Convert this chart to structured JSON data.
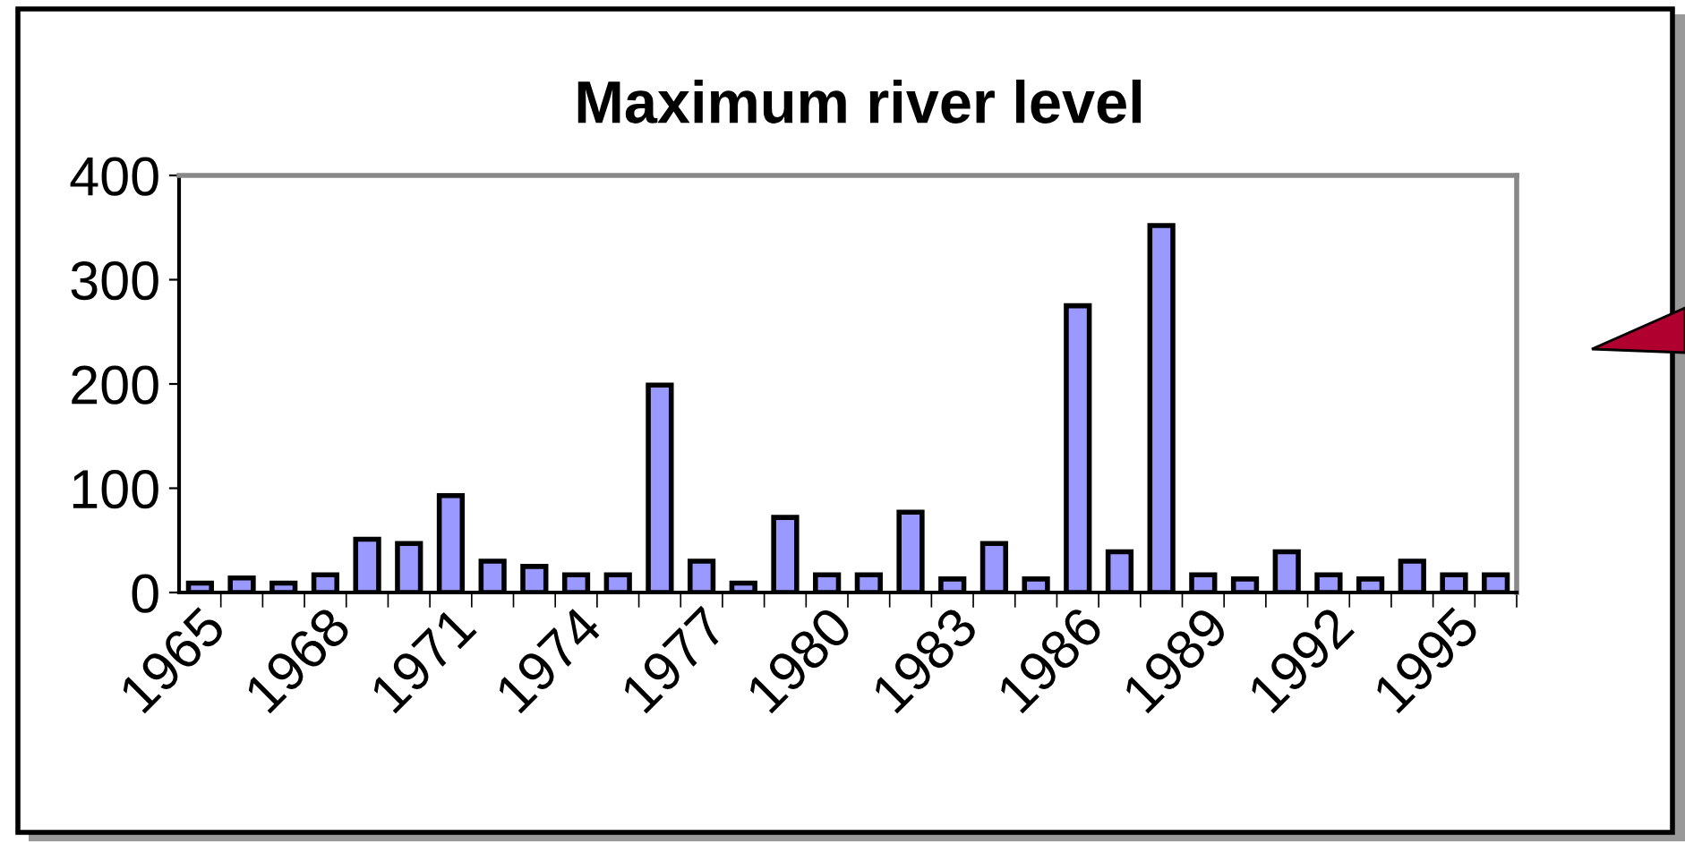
{
  "chart_data": {
    "type": "bar",
    "title": "Maximum river level",
    "categories": [
      "1965",
      null,
      null,
      "1968",
      null,
      null,
      "1971",
      null,
      null,
      "1974",
      null,
      null,
      "1977",
      null,
      null,
      "1980",
      null,
      null,
      "1983",
      null,
      null,
      "1986",
      null,
      null,
      "1989",
      null,
      null,
      "1992",
      null,
      null,
      "1995",
      null
    ],
    "values": [
      9,
      14,
      9,
      17,
      51,
      47,
      93,
      30,
      25,
      17,
      17,
      199,
      30,
      9,
      72,
      17,
      17,
      77,
      13,
      47,
      13,
      275,
      39,
      352,
      17,
      13,
      39,
      17,
      13,
      30,
      17,
      17
    ],
    "color": "#9999ff",
    "ylim": [
      0,
      400
    ],
    "yticks": [
      0,
      100,
      200,
      300,
      400
    ]
  }
}
